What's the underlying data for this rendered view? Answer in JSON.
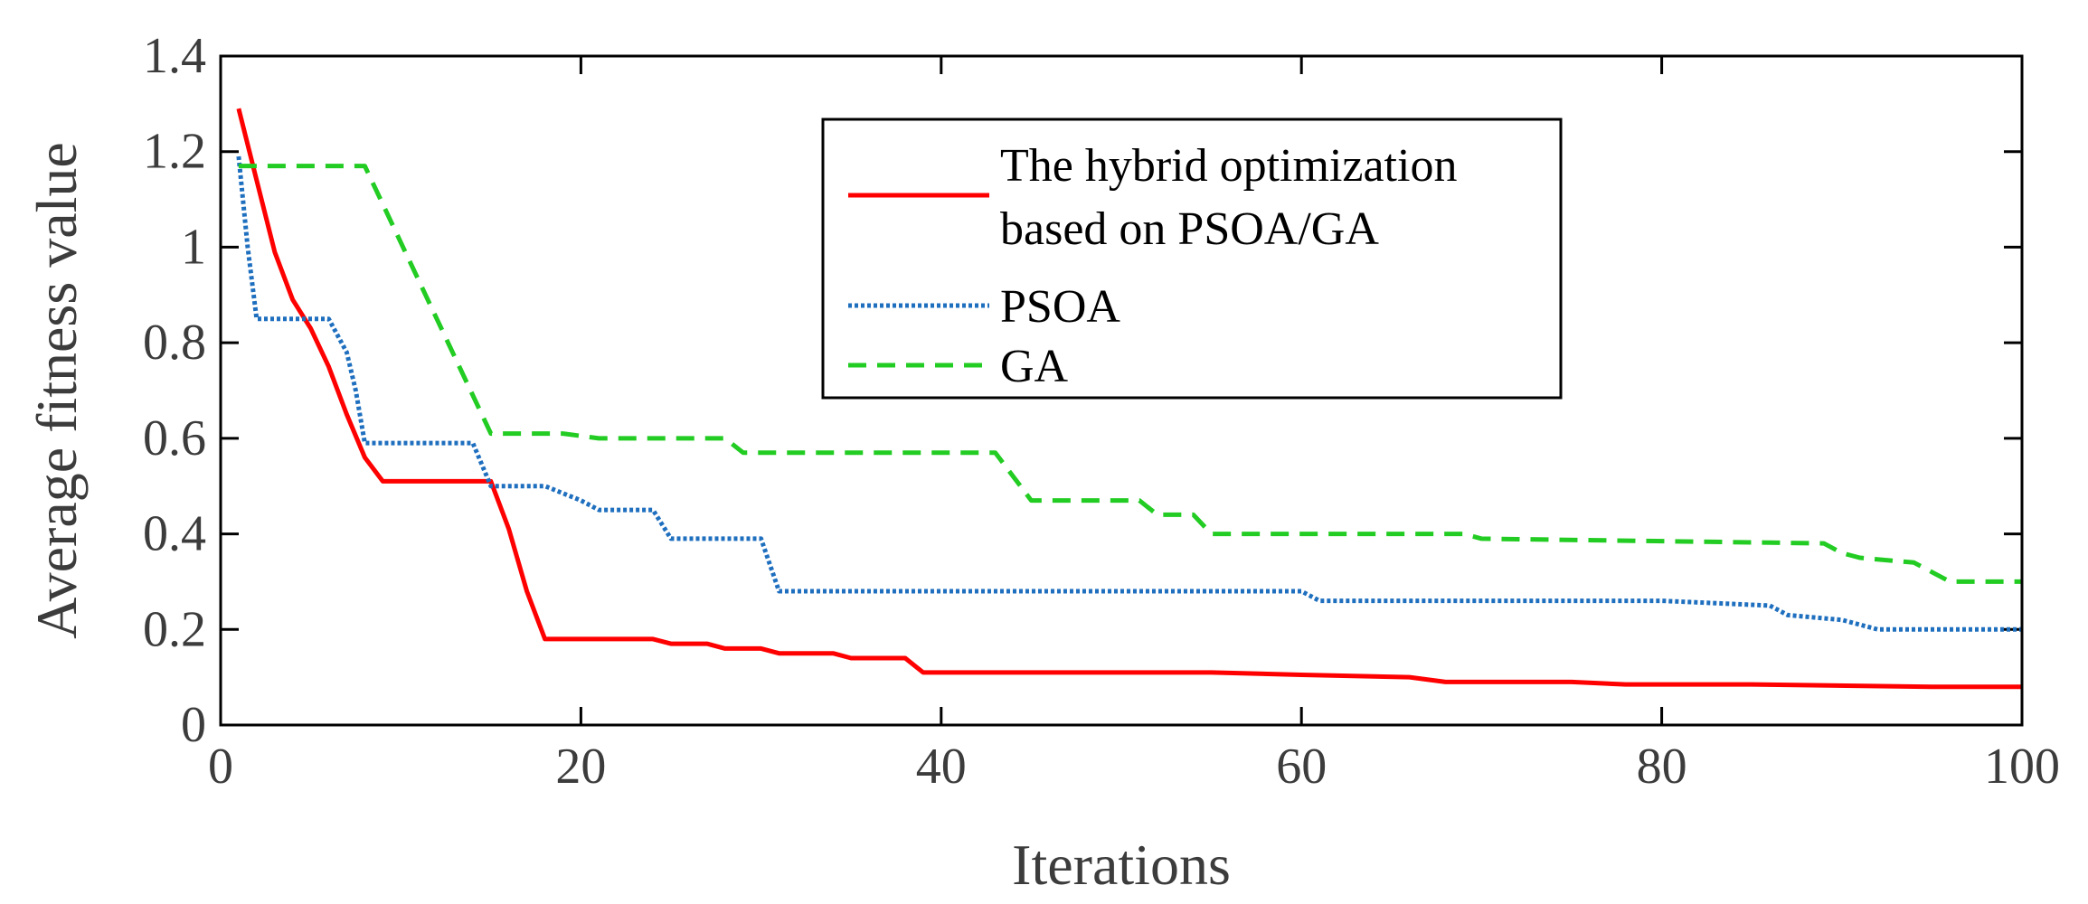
{
  "chart_data": {
    "type": "line",
    "xlabel": "Iterations",
    "ylabel": "Average fitness value",
    "xlim": [
      0,
      100
    ],
    "ylim": [
      0,
      1.4
    ],
    "xticks": [
      0,
      20,
      40,
      60,
      80,
      100
    ],
    "yticks": [
      0,
      0.2,
      0.4,
      0.6,
      0.8,
      1,
      1.2,
      1.4
    ],
    "xtick_labels": [
      "0",
      "20",
      "40",
      "60",
      "80",
      "100"
    ],
    "ytick_labels": [
      "0",
      "0.2",
      "0.4",
      "0.6",
      "0.8",
      "1",
      "1.2",
      "1.4"
    ],
    "legend_position": "top-center",
    "series": [
      {
        "name": "The hybrid optimization based on PSOA/GA",
        "legend_lines": [
          "The hybrid optimization",
          "based on PSOA/GA"
        ],
        "color": "#ff0000",
        "style": "solid",
        "x": [
          1,
          2,
          3,
          4,
          5,
          6,
          7,
          8,
          9,
          15,
          16,
          17,
          18,
          24,
          25,
          27,
          28,
          30,
          31,
          34,
          35,
          38,
          39,
          45,
          55,
          60,
          66,
          68,
          70,
          75,
          78,
          85,
          95,
          100
        ],
        "y": [
          1.29,
          1.14,
          0.99,
          0.89,
          0.83,
          0.75,
          0.65,
          0.56,
          0.51,
          0.51,
          0.41,
          0.28,
          0.18,
          0.18,
          0.17,
          0.17,
          0.16,
          0.16,
          0.15,
          0.15,
          0.14,
          0.14,
          0.11,
          0.11,
          0.11,
          0.105,
          0.1,
          0.09,
          0.09,
          0.09,
          0.085,
          0.085,
          0.08,
          0.08
        ]
      },
      {
        "name": "PSOA",
        "legend_lines": [
          "PSOA"
        ],
        "color": "#1f6fbf",
        "style": "dotted",
        "x": [
          1,
          1.5,
          2,
          6,
          7,
          7.5,
          8,
          14,
          15,
          18,
          20,
          21,
          24,
          25,
          30,
          31,
          40,
          50,
          60,
          61,
          70,
          80,
          86,
          87,
          90,
          92,
          95,
          100
        ],
        "y": [
          1.19,
          1.0,
          0.85,
          0.85,
          0.78,
          0.7,
          0.59,
          0.59,
          0.5,
          0.5,
          0.47,
          0.45,
          0.45,
          0.39,
          0.39,
          0.28,
          0.28,
          0.28,
          0.28,
          0.26,
          0.26,
          0.26,
          0.25,
          0.23,
          0.22,
          0.2,
          0.2,
          0.2
        ]
      },
      {
        "name": "GA",
        "legend_lines": [
          "GA"
        ],
        "color": "#22cc22",
        "style": "dashed",
        "x": [
          1,
          8,
          15,
          19,
          21,
          28,
          29,
          43,
          45,
          51,
          52,
          54,
          55,
          69,
          70,
          89,
          90,
          91,
          94,
          96,
          100
        ],
        "y": [
          1.17,
          1.17,
          0.61,
          0.61,
          0.6,
          0.6,
          0.57,
          0.57,
          0.47,
          0.47,
          0.44,
          0.44,
          0.4,
          0.4,
          0.39,
          0.38,
          0.36,
          0.35,
          0.34,
          0.3,
          0.3
        ]
      }
    ]
  }
}
